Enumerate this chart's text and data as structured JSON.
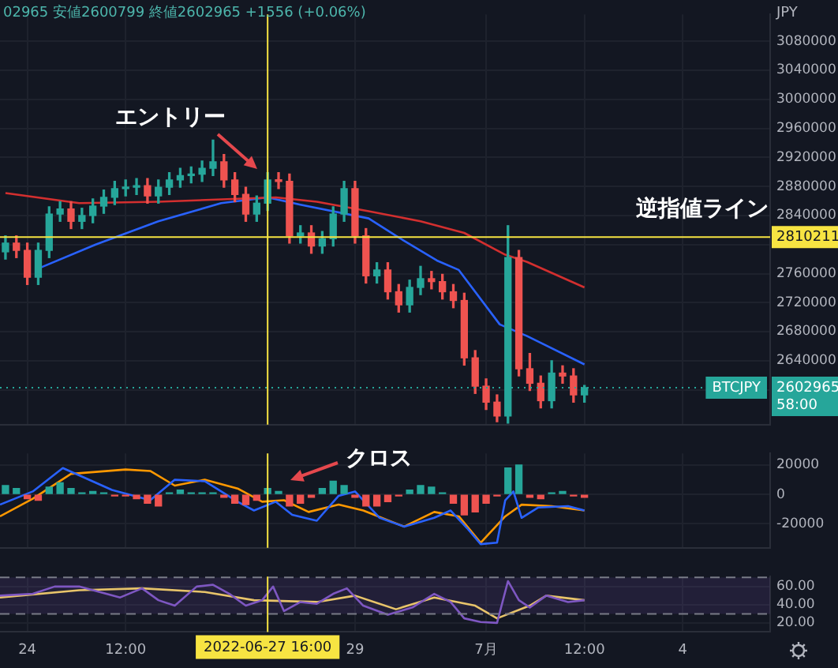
{
  "chart_data": [
    {
      "type": "candlestick",
      "subtitle": "02965 安値2600799 終値2602965 +1556 (+0.06%)",
      "ylabel": "JPY",
      "x": [
        "2022-06-23T16:00",
        "2022-06-23T20:00",
        "2022-06-24T00:00",
        "2022-06-24T04:00",
        "2022-06-24T08:00",
        "2022-06-24T12:00",
        "2022-06-24T16:00",
        "2022-06-24T20:00",
        "2022-06-25T00:00",
        "2022-06-25T04:00",
        "2022-06-25T08:00",
        "2022-06-25T12:00",
        "2022-06-25T16:00",
        "2022-06-25T20:00",
        "2022-06-26T00:00",
        "2022-06-26T04:00",
        "2022-06-26T08:00",
        "2022-06-26T12:00",
        "2022-06-26T16:00",
        "2022-06-26T20:00",
        "2022-06-27T00:00",
        "2022-06-27T04:00",
        "2022-06-27T08:00",
        "2022-06-27T12:00",
        "2022-06-27T16:00",
        "2022-06-27T20:00",
        "2022-06-28T00:00",
        "2022-06-28T04:00",
        "2022-06-28T08:00",
        "2022-06-28T12:00",
        "2022-06-28T16:00",
        "2022-06-28T20:00",
        "2022-06-29T00:00",
        "2022-06-29T04:00",
        "2022-06-29T08:00",
        "2022-06-29T12:00",
        "2022-06-29T16:00",
        "2022-06-29T20:00",
        "2022-06-30T00:00",
        "2022-06-30T04:00",
        "2022-06-30T08:00",
        "2022-06-30T12:00",
        "2022-06-30T16:00",
        "2022-06-30T20:00",
        "2022-07-01T00:00",
        "2022-07-01T04:00",
        "2022-07-01T08:00",
        "2022-07-01T12:00",
        "2022-07-01T16:00",
        "2022-07-01T20:00",
        "2022-07-02T00:00",
        "2022-07-02T04:00",
        "2022-07-02T08:00",
        "2022-07-02T12:00"
      ],
      "ohlc": [
        [
          2790000,
          2812000,
          2780000,
          2802000
        ],
        [
          2802000,
          2812000,
          2782000,
          2792000
        ],
        [
          2792000,
          2802000,
          2745000,
          2755000
        ],
        [
          2755000,
          2802000,
          2745000,
          2792000
        ],
        [
          2792000,
          2852000,
          2782000,
          2842000
        ],
        [
          2842000,
          2859000,
          2832000,
          2849000
        ],
        [
          2849000,
          2859000,
          2822000,
          2832000
        ],
        [
          2832000,
          2850000,
          2822000,
          2840000
        ],
        [
          2840000,
          2863000,
          2830000,
          2853000
        ],
        [
          2853000,
          2875000,
          2843000,
          2865000
        ],
        [
          2865000,
          2887000,
          2855000,
          2877000
        ],
        [
          2877000,
          2889000,
          2867000,
          2879000
        ],
        [
          2879000,
          2891000,
          2869000,
          2881000
        ],
        [
          2881000,
          2891000,
          2857000,
          2867000
        ],
        [
          2867000,
          2889000,
          2857000,
          2879000
        ],
        [
          2879000,
          2899000,
          2869000,
          2889000
        ],
        [
          2889000,
          2905000,
          2879000,
          2895000
        ],
        [
          2895000,
          2907000,
          2885000,
          2897000
        ],
        [
          2897000,
          2915000,
          2887000,
          2905000
        ],
        [
          2905000,
          2944000,
          2895000,
          2914000
        ],
        [
          2914000,
          2924000,
          2879000,
          2889000
        ],
        [
          2889000,
          2899000,
          2859000,
          2869000
        ],
        [
          2869000,
          2879000,
          2832000,
          2842000
        ],
        [
          2842000,
          2867000,
          2832000,
          2857000
        ],
        [
          2857000,
          2899000,
          2847000,
          2889000
        ],
        [
          2889000,
          2899000,
          2877000,
          2887000
        ],
        [
          2887000,
          2897000,
          2802000,
          2812000
        ],
        [
          2812000,
          2826000,
          2802000,
          2816000
        ],
        [
          2816000,
          2826000,
          2788000,
          2798000
        ],
        [
          2798000,
          2818000,
          2788000,
          2808000
        ],
        [
          2808000,
          2852000,
          2798000,
          2842000
        ],
        [
          2842000,
          2887000,
          2832000,
          2877000
        ],
        [
          2877000,
          2887000,
          2802000,
          2812000
        ],
        [
          2812000,
          2822000,
          2747000,
          2757000
        ],
        [
          2757000,
          2775000,
          2747000,
          2765000
        ],
        [
          2765000,
          2775000,
          2725000,
          2735000
        ],
        [
          2735000,
          2745000,
          2707000,
          2717000
        ],
        [
          2717000,
          2751000,
          2707000,
          2741000
        ],
        [
          2741000,
          2770000,
          2731000,
          2753000
        ],
        [
          2753000,
          2763000,
          2739000,
          2749000
        ],
        [
          2749000,
          2759000,
          2725000,
          2735000
        ],
        [
          2735000,
          2745000,
          2713000,
          2723000
        ],
        [
          2723000,
          2733000,
          2634000,
          2644000
        ],
        [
          2644000,
          2654000,
          2595000,
          2605000
        ],
        [
          2605000,
          2615000,
          2573000,
          2583000
        ],
        [
          2583000,
          2593000,
          2556000,
          2564000
        ],
        [
          2564000,
          2826000,
          2554000,
          2782000
        ],
        [
          2782000,
          2792000,
          2619000,
          2629000
        ],
        [
          2629000,
          2650000,
          2599000,
          2609000
        ],
        [
          2609000,
          2619000,
          2575000,
          2585000
        ],
        [
          2585000,
          2640000,
          2575000,
          2623000
        ],
        [
          2623000,
          2633000,
          2609000,
          2619000
        ],
        [
          2619000,
          2629000,
          2583000,
          2593000
        ],
        [
          2593000,
          2606000,
          2583000,
          2602965
        ]
      ],
      "colors": [
        "#26a69a",
        "#ef5350",
        "#ef5350",
        "#26a69a",
        "#26a69a",
        "#26a69a",
        "#ef5350",
        "#26a69a",
        "#26a69a",
        "#26a69a",
        "#26a69a",
        "#26a69a",
        "#26a69a",
        "#ef5350",
        "#26a69a",
        "#26a69a",
        "#26a69a",
        "#26a69a",
        "#26a69a",
        "#26a69a",
        "#ef5350",
        "#ef5350",
        "#ef5350",
        "#26a69a",
        "#26a69a",
        "#ef5350",
        "#ef5350",
        "#26a69a",
        "#ef5350",
        "#26a69a",
        "#26a69a",
        "#26a69a",
        "#ef5350",
        "#ef5350",
        "#26a69a",
        "#ef5350",
        "#ef5350",
        "#26a69a",
        "#26a69a",
        "#ef5350",
        "#ef5350",
        "#ef5350",
        "#ef5350",
        "#ef5350",
        "#ef5350",
        "#ef5350",
        "#26a69a",
        "#ef5350",
        "#ef5350",
        "#ef5350",
        "#26a69a",
        "#ef5350",
        "#ef5350",
        "#26a69a"
      ],
      "series": [
        {
          "type": "line",
          "color": "#d32f2f",
          "x": [
            "2022-06-23T16:00",
            "2022-06-24T19:00",
            "2022-06-26T00:00",
            "2022-06-27T05:00",
            "2022-06-27T19:00",
            "2022-06-28T10:00",
            "2022-06-29T05:00",
            "2022-06-30T00:00",
            "2022-06-30T16:00",
            "2022-07-01T07:00",
            "2022-07-01T15:00",
            "2022-07-02T12:00"
          ],
          "values": [
            2871000,
            2857000,
            2859000,
            2863000,
            2865000,
            2859000,
            2846000,
            2832000,
            2816000,
            2786000,
            2776000,
            2741000
          ]
        },
        {
          "type": "line",
          "color": "#2962ff",
          "x": [
            "2022-06-24T04:00",
            "2022-06-25T01:00",
            "2022-06-26T00:00",
            "2022-06-26T23:00",
            "2022-06-27T16:00",
            "2022-06-28T04:00",
            "2022-06-29T05:00",
            "2022-06-29T15:00",
            "2022-06-30T06:00",
            "2022-06-30T14:00",
            "2022-07-01T05:00",
            "2022-07-01T15:00",
            "2022-07-02T12:00"
          ],
          "values": [
            2767000,
            2800000,
            2832000,
            2857000,
            2865000,
            2855000,
            2836000,
            2812000,
            2778000,
            2765000,
            2690000,
            2674000,
            2635000
          ]
        }
      ],
      "ref_lines": [
        {
          "axis": "x",
          "value": "2022-06-27T16:00",
          "color": "#f7e442"
        },
        {
          "axis": "y",
          "value": 2810211,
          "label": "2810211",
          "color": "#f7e442"
        },
        {
          "axis": "y",
          "value": 2602965,
          "label": "BTCJPY 2602965 58:00",
          "color": "#26a69a",
          "line_style": "dotted"
        }
      ],
      "annotations": [
        "エントリー",
        "逆指値ライン"
      ],
      "xlim": [
        "2022-06-23T14:00",
        "2022-07-05T08:00"
      ],
      "xticks": [
        {
          "value": "2022-06-24T00:00",
          "label": null
        },
        {
          "value": "2022-06-25T12:00",
          "label": null
        },
        {
          "value": "2022-06-29T00:00",
          "label": null
        },
        {
          "value": "2022-07-01T00:00",
          "label": null
        },
        {
          "value": "2022-07-02T12:00",
          "label": null
        },
        {
          "value": "2022-07-04T00:00",
          "label": null
        }
      ],
      "ylim": [
        2552000,
        3117000
      ],
      "yticks": [
        {
          "value": 2600000,
          "label": null
        },
        2640000,
        2680000,
        2720000,
        2760000,
        {
          "value": 2800000,
          "label": null
        },
        2840000,
        2880000,
        2920000,
        2960000,
        3000000,
        3040000,
        3080000
      ],
      "grid": true,
      "tick_labels": "y"
    },
    {
      "type": "bar",
      "x": [
        "2022-06-23T16:00",
        "2022-06-23T20:00",
        "2022-06-24T00:00",
        "2022-06-24T04:00",
        "2022-06-24T08:00",
        "2022-06-24T12:00",
        "2022-06-24T16:00",
        "2022-06-24T20:00",
        "2022-06-25T00:00",
        "2022-06-25T04:00",
        "2022-06-25T08:00",
        "2022-06-25T12:00",
        "2022-06-25T16:00",
        "2022-06-25T20:00",
        "2022-06-26T00:00",
        "2022-06-26T04:00",
        "2022-06-26T08:00",
        "2022-06-26T12:00",
        "2022-06-26T16:00",
        "2022-06-26T20:00",
        "2022-06-27T00:00",
        "2022-06-27T04:00",
        "2022-06-27T08:00",
        "2022-06-27T12:00",
        "2022-06-27T16:00",
        "2022-06-27T20:00",
        "2022-06-28T00:00",
        "2022-06-28T04:00",
        "2022-06-28T08:00",
        "2022-06-28T12:00",
        "2022-06-28T16:00",
        "2022-06-28T20:00",
        "2022-06-29T00:00",
        "2022-06-29T04:00",
        "2022-06-29T08:00",
        "2022-06-29T12:00",
        "2022-06-29T16:00",
        "2022-06-29T20:00",
        "2022-06-30T00:00",
        "2022-06-30T04:00",
        "2022-06-30T08:00",
        "2022-06-30T12:00",
        "2022-06-30T16:00",
        "2022-06-30T20:00",
        "2022-07-01T00:00",
        "2022-07-01T04:00",
        "2022-07-01T08:00",
        "2022-07-01T12:00",
        "2022-07-01T16:00",
        "2022-07-01T20:00",
        "2022-07-02T00:00",
        "2022-07-02T04:00",
        "2022-07-02T08:00",
        "2022-07-02T12:00"
      ],
      "series": [
        {
          "values": [
            6000,
            4000,
            -3000,
            -4000,
            5000,
            8000,
            4000,
            1000,
            2000,
            1000,
            -1000,
            -1000,
            -3000,
            -6000,
            -8000,
            1000,
            3000,
            1000,
            1000,
            1000,
            -2000,
            -6000,
            -7000,
            -4000,
            4000,
            2000,
            -8000,
            -6000,
            -2000,
            4000,
            9000,
            6000,
            -2000,
            -8000,
            -8000,
            -5000,
            -1000,
            3000,
            6000,
            5000,
            1000,
            -6000,
            -14000,
            -12000,
            -6000,
            -1000,
            18000,
            20000,
            -2000,
            -3000,
            1000,
            2000,
            -1000,
            -2000
          ],
          "colors": [
            "#26a69a",
            "#26a69a",
            "#ef5350",
            "#ef5350",
            "#26a69a",
            "#26a69a",
            "#26a69a",
            "#26a69a",
            "#26a69a",
            "#26a69a",
            "#ef5350",
            "#ef5350",
            "#ef5350",
            "#ef5350",
            "#ef5350",
            "#26a69a",
            "#26a69a",
            "#26a69a",
            "#26a69a",
            "#26a69a",
            "#ef5350",
            "#ef5350",
            "#ef5350",
            "#ef5350",
            "#26a69a",
            "#26a69a",
            "#ef5350",
            "#ef5350",
            "#ef5350",
            "#26a69a",
            "#26a69a",
            "#26a69a",
            "#ef5350",
            "#ef5350",
            "#ef5350",
            "#ef5350",
            "#ef5350",
            "#26a69a",
            "#26a69a",
            "#26a69a",
            "#26a69a",
            "#ef5350",
            "#ef5350",
            "#ef5350",
            "#ef5350",
            "#ef5350",
            "#26a69a",
            "#26a69a",
            "#ef5350",
            "#ef5350",
            "#26a69a",
            "#26a69a",
            "#ef5350",
            "#ef5350"
          ]
        },
        {
          "type": "line",
          "color": "#2962ff",
          "x": [
            "2022-06-23T14:00",
            "2022-06-24T02:00",
            "2022-06-24T13:00",
            "2022-06-24T19:00",
            "2022-06-25T07:00",
            "2022-06-25T21:00",
            "2022-06-26T06:00",
            "2022-06-26T17:00",
            "2022-06-27T05:00",
            "2022-06-27T11:00",
            "2022-06-27T19:00",
            "2022-06-28T01:00",
            "2022-06-28T10:00",
            "2022-06-28T18:00",
            "2022-06-29T00:00",
            "2022-06-29T09:00",
            "2022-06-29T18:00",
            "2022-06-30T05:00",
            "2022-06-30T11:00",
            "2022-06-30T17:00",
            "2022-06-30T22:00",
            "2022-07-01T04:00",
            "2022-07-01T07:00",
            "2022-07-01T10:00",
            "2022-07-01T13:00",
            "2022-07-01T19:00",
            "2022-07-02T06:00",
            "2022-07-02T12:00"
          ],
          "values": [
            -7000,
            2000,
            18000,
            13000,
            3000,
            -4000,
            10000,
            9000,
            -5000,
            -11000,
            -5000,
            -14000,
            -18000,
            -1000,
            2000,
            -16000,
            -22000,
            -16000,
            -11000,
            -23000,
            -34000,
            -33000,
            -4000,
            2000,
            -16000,
            -9000,
            -8000,
            -11000
          ]
        },
        {
          "type": "line",
          "color": "#ff9800",
          "x": [
            "2022-06-23T14:00",
            "2022-06-24T02:00",
            "2022-06-24T16:00",
            "2022-06-25T12:00",
            "2022-06-25T21:00",
            "2022-06-26T06:00",
            "2022-06-26T17:00",
            "2022-06-27T05:00",
            "2022-06-27T14:00",
            "2022-06-27T22:00",
            "2022-06-28T07:00",
            "2022-06-28T18:00",
            "2022-06-29T03:00",
            "2022-06-29T18:00",
            "2022-06-30T05:00",
            "2022-06-30T14:00",
            "2022-06-30T22:00",
            "2022-07-01T07:00",
            "2022-07-01T13:00",
            "2022-07-02T00:00",
            "2022-07-02T12:00"
          ],
          "values": [
            -15000,
            -3000,
            14000,
            17000,
            16000,
            6000,
            10000,
            4000,
            -5000,
            -4000,
            -12000,
            -7000,
            -11000,
            -22000,
            -12000,
            -15000,
            -33000,
            -15000,
            -7000,
            -8000,
            -11000
          ]
        }
      ],
      "ref_lines": [
        {
          "axis": "x",
          "value": "2022-06-27T16:00",
          "color": "#f7e442"
        }
      ],
      "annotations": [
        "クロス"
      ],
      "xlim": [
        "2022-06-23T14:00",
        "2022-07-05T08:00"
      ],
      "xticks": [
        {
          "value": "2022-06-24T00:00",
          "label": null
        },
        {
          "value": "2022-06-25T12:00",
          "label": null
        },
        {
          "value": "2022-06-29T00:00",
          "label": null
        },
        {
          "value": "2022-07-01T00:00",
          "label": null
        },
        {
          "value": "2022-07-02T12:00",
          "label": null
        },
        {
          "value": "2022-07-04T00:00",
          "label": null
        }
      ],
      "ylim": [
        -36500,
        28000
      ],
      "yticks": [
        -20000,
        0,
        20000
      ],
      "grid": true,
      "tick_labels": "y"
    },
    {
      "type": "line",
      "series": [
        {
          "color": "#7e57c2",
          "x": [
            "2022-06-23T14:00",
            "2022-06-24T02:00",
            "2022-06-24T10:00",
            "2022-06-24T19:00",
            "2022-06-25T10:00",
            "2022-06-25T18:00",
            "2022-06-26T00:00",
            "2022-06-26T06:00",
            "2022-06-26T14:00",
            "2022-06-26T20:00",
            "2022-06-27T02:00",
            "2022-06-27T08:00",
            "2022-06-27T14:00",
            "2022-06-27T18:00",
            "2022-06-27T22:00",
            "2022-06-28T04:00",
            "2022-06-28T10:00",
            "2022-06-28T16:00",
            "2022-06-28T21:00",
            "2022-06-29T03:00",
            "2022-06-29T12:00",
            "2022-06-29T21:00",
            "2022-06-30T05:00",
            "2022-06-30T11:00",
            "2022-06-30T16:00",
            "2022-06-30T22:00",
            "2022-07-01T04:00",
            "2022-07-01T08:00",
            "2022-07-01T12:00",
            "2022-07-01T16:00",
            "2022-07-01T22:00",
            "2022-07-02T06:00",
            "2022-07-02T12:00"
          ],
          "values": [
            50,
            52,
            60,
            60,
            48,
            58,
            45,
            39,
            60,
            62,
            52,
            39,
            45,
            60,
            33,
            43,
            41,
            52,
            58,
            39,
            29,
            37,
            52,
            43,
            25,
            21,
            20,
            66,
            45,
            37,
            50,
            43,
            45
          ]
        },
        {
          "color": "#e8c46a",
          "x": [
            "2022-06-23T14:00",
            "2022-06-24T19:00",
            "2022-06-25T18:00",
            "2022-06-26T17:00",
            "2022-06-27T11:00",
            "2022-06-28T10:00",
            "2022-06-29T00:00",
            "2022-06-29T15:00",
            "2022-06-30T05:00",
            "2022-06-30T20:00",
            "2022-07-01T04:00",
            "2022-07-01T16:00",
            "2022-07-01T22:00",
            "2022-07-02T12:00"
          ],
          "values": [
            48,
            56,
            58,
            54,
            45,
            43,
            50,
            35,
            48,
            39,
            25,
            39,
            50,
            45
          ]
        }
      ],
      "bands": [
        {
          "axis": "y",
          "from": 30,
          "to": 70,
          "color": "#7e57c2"
        }
      ],
      "ref_lines": [
        {
          "axis": "x",
          "value": "2022-06-27T16:00",
          "label": "2022-06-27 16:00",
          "color": "#f7e442"
        },
        {
          "axis": "y",
          "value": 70,
          "color": "#787b86",
          "line_style": "dashed"
        },
        {
          "axis": "y",
          "value": 30,
          "color": "#787b86",
          "line_style": "dashed"
        }
      ],
      "xlim": [
        "2022-06-23T14:00",
        "2022-07-05T08:00"
      ],
      "xticks": [
        {
          "value": "2022-06-24T00:00",
          "label": "24"
        },
        {
          "value": "2022-06-25T12:00",
          "label": "12:00"
        },
        {
          "value": "2022-06-29T00:00",
          "label": "29"
        },
        {
          "value": "2022-07-01T00:00",
          "label": "7月"
        },
        {
          "value": "2022-07-02T12:00",
          "label": "12:00"
        },
        {
          "value": "2022-07-04T00:00",
          "label": "4"
        }
      ],
      "ylim": [
        10,
        71
      ],
      "yticks": [
        {
          "value": 20,
          "label": "20.00"
        },
        {
          "value": 40,
          "label": "40.00"
        },
        {
          "value": 60,
          "label": "60.00"
        }
      ],
      "grid": true
    }
  ]
}
